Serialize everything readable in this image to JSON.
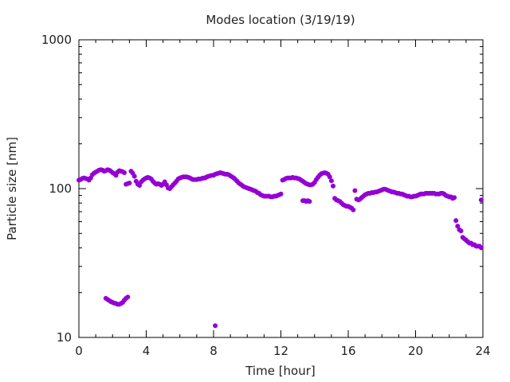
{
  "chart_data": {
    "type": "scatter",
    "title": "Modes location (3/19/19)",
    "xlabel": "Time [hour]",
    "ylabel": "Particle size [nm]",
    "xlim": [
      0,
      24
    ],
    "ylim": [
      10,
      1000
    ],
    "yscale": "log",
    "x_ticks": [
      0,
      4,
      8,
      12,
      16,
      20,
      24
    ],
    "y_ticks": [
      10,
      100,
      1000
    ],
    "grid": false,
    "legend": "none",
    "marker_color": "#9400d3",
    "series": [
      {
        "points": [
          [
            0.0,
            114
          ],
          [
            0.1,
            115
          ],
          [
            0.2,
            117
          ],
          [
            0.3,
            118
          ],
          [
            0.4,
            117
          ],
          [
            0.5,
            116
          ],
          [
            0.6,
            114
          ],
          [
            0.7,
            118
          ],
          [
            0.8,
            124
          ],
          [
            0.9,
            127
          ],
          [
            1.0,
            129
          ],
          [
            1.1,
            131
          ],
          [
            1.2,
            133
          ],
          [
            1.3,
            134
          ],
          [
            1.4,
            133
          ],
          [
            1.5,
            131
          ],
          [
            1.6,
            132
          ],
          [
            1.7,
            134
          ],
          [
            1.8,
            133
          ],
          [
            1.9,
            131
          ],
          [
            2.0,
            128
          ],
          [
            2.1,
            126
          ],
          [
            2.2,
            123
          ],
          [
            2.3,
            129
          ],
          [
            2.4,
            132
          ],
          [
            2.5,
            131
          ],
          [
            2.6,
            130
          ],
          [
            2.7,
            128
          ],
          [
            2.8,
            107
          ],
          [
            2.9,
            108
          ],
          [
            3.0,
            109
          ],
          [
            3.1,
            131
          ],
          [
            3.2,
            127
          ],
          [
            3.3,
            121
          ],
          [
            3.4,
            112
          ],
          [
            3.5,
            107
          ],
          [
            3.6,
            105
          ],
          [
            3.7,
            111
          ],
          [
            3.8,
            114
          ],
          [
            3.9,
            116
          ],
          [
            4.0,
            118
          ],
          [
            4.1,
            119
          ],
          [
            4.2,
            118
          ],
          [
            4.3,
            116
          ],
          [
            4.4,
            112
          ],
          [
            4.5,
            109
          ],
          [
            4.6,
            107
          ],
          [
            4.7,
            108
          ],
          [
            4.8,
            107
          ],
          [
            4.9,
            105
          ],
          [
            5.0,
            107
          ],
          [
            5.1,
            111
          ],
          [
            5.2,
            106
          ],
          [
            5.3,
            101
          ],
          [
            5.4,
            100
          ],
          [
            5.5,
            103
          ],
          [
            5.6,
            106
          ],
          [
            5.7,
            109
          ],
          [
            5.8,
            112
          ],
          [
            5.9,
            116
          ],
          [
            6.0,
            118
          ],
          [
            6.1,
            119
          ],
          [
            6.2,
            120
          ],
          [
            6.3,
            120
          ],
          [
            6.4,
            120
          ],
          [
            6.5,
            119
          ],
          [
            6.6,
            118
          ],
          [
            6.7,
            116
          ],
          [
            6.8,
            115
          ],
          [
            6.9,
            115
          ],
          [
            7.0,
            115
          ],
          [
            7.1,
            116
          ],
          [
            7.2,
            116
          ],
          [
            7.3,
            117
          ],
          [
            7.4,
            118
          ],
          [
            7.5,
            118
          ],
          [
            7.6,
            120
          ],
          [
            7.7,
            121
          ],
          [
            7.8,
            122
          ],
          [
            7.9,
            123
          ],
          [
            8.0,
            123
          ],
          [
            8.1,
            125
          ],
          [
            8.2,
            126
          ],
          [
            8.3,
            127
          ],
          [
            8.4,
            128
          ],
          [
            8.5,
            127
          ],
          [
            8.6,
            126
          ],
          [
            8.7,
            125
          ],
          [
            8.8,
            125
          ],
          [
            8.9,
            124
          ],
          [
            9.0,
            122
          ],
          [
            9.1,
            120
          ],
          [
            9.2,
            118
          ],
          [
            9.3,
            115
          ],
          [
            9.4,
            112
          ],
          [
            9.5,
            109
          ],
          [
            9.6,
            107
          ],
          [
            9.7,
            105
          ],
          [
            9.8,
            103
          ],
          [
            9.9,
            102
          ],
          [
            10.0,
            101
          ],
          [
            10.1,
            100
          ],
          [
            10.2,
            99
          ],
          [
            10.3,
            98
          ],
          [
            10.4,
            97
          ],
          [
            10.5,
            96
          ],
          [
            10.6,
            94
          ],
          [
            10.7,
            93
          ],
          [
            10.8,
            91
          ],
          [
            10.9,
            90
          ],
          [
            11.0,
            89
          ],
          [
            11.1,
            89
          ],
          [
            11.2,
            89
          ],
          [
            11.3,
            89
          ],
          [
            11.4,
            88
          ],
          [
            11.5,
            88
          ],
          [
            11.6,
            89
          ],
          [
            11.7,
            89
          ],
          [
            11.8,
            90
          ],
          [
            11.9,
            91
          ],
          [
            12.0,
            92
          ],
          [
            12.1,
            114
          ],
          [
            12.2,
            115
          ],
          [
            12.3,
            117
          ],
          [
            12.4,
            118
          ],
          [
            12.5,
            118
          ],
          [
            12.6,
            118
          ],
          [
            12.7,
            119
          ],
          [
            12.8,
            118
          ],
          [
            12.9,
            118
          ],
          [
            13.0,
            117
          ],
          [
            13.1,
            116
          ],
          [
            13.2,
            114
          ],
          [
            13.3,
            112
          ],
          [
            13.4,
            110
          ],
          [
            13.5,
            108
          ],
          [
            13.6,
            107
          ],
          [
            13.7,
            106
          ],
          [
            13.8,
            106
          ],
          [
            13.9,
            107
          ],
          [
            14.0,
            110
          ],
          [
            14.1,
            115
          ],
          [
            14.2,
            119
          ],
          [
            14.3,
            123
          ],
          [
            14.4,
            126
          ],
          [
            14.5,
            127
          ],
          [
            14.6,
            128
          ],
          [
            14.7,
            127
          ],
          [
            14.8,
            125
          ],
          [
            14.9,
            120
          ],
          [
            15.0,
            113
          ],
          [
            15.1,
            104
          ],
          [
            15.2,
            86
          ],
          [
            15.3,
            84
          ],
          [
            15.4,
            83
          ],
          [
            15.5,
            82
          ],
          [
            15.6,
            80
          ],
          [
            15.7,
            78
          ],
          [
            15.8,
            77
          ],
          [
            15.9,
            76
          ],
          [
            16.0,
            76
          ],
          [
            16.1,
            75
          ],
          [
            16.2,
            74
          ],
          [
            16.3,
            72
          ],
          [
            16.4,
            97
          ],
          [
            16.5,
            85
          ],
          [
            16.6,
            84
          ],
          [
            16.7,
            85
          ],
          [
            16.8,
            87
          ],
          [
            16.9,
            89
          ],
          [
            17.0,
            91
          ],
          [
            17.1,
            92
          ],
          [
            17.2,
            93
          ],
          [
            17.3,
            93
          ],
          [
            17.4,
            94
          ],
          [
            17.5,
            94
          ],
          [
            17.6,
            95
          ],
          [
            17.7,
            95
          ],
          [
            17.8,
            96
          ],
          [
            17.9,
            97
          ],
          [
            18.0,
            98
          ],
          [
            18.1,
            99
          ],
          [
            18.2,
            99
          ],
          [
            18.3,
            98
          ],
          [
            18.4,
            97
          ],
          [
            18.5,
            96
          ],
          [
            18.6,
            95
          ],
          [
            18.7,
            95
          ],
          [
            18.8,
            94
          ],
          [
            18.9,
            93
          ],
          [
            19.0,
            93
          ],
          [
            19.1,
            92
          ],
          [
            19.2,
            92
          ],
          [
            19.3,
            91
          ],
          [
            19.4,
            90
          ],
          [
            19.5,
            89
          ],
          [
            19.6,
            89
          ],
          [
            19.7,
            88
          ],
          [
            19.8,
            88
          ],
          [
            19.9,
            89
          ],
          [
            20.0,
            89
          ],
          [
            20.1,
            90
          ],
          [
            20.2,
            91
          ],
          [
            20.3,
            92
          ],
          [
            20.4,
            92
          ],
          [
            20.5,
            92
          ],
          [
            20.6,
            93
          ],
          [
            20.7,
            93
          ],
          [
            20.8,
            93
          ],
          [
            20.9,
            93
          ],
          [
            21.0,
            93
          ],
          [
            21.1,
            93
          ],
          [
            21.2,
            92
          ],
          [
            21.3,
            92
          ],
          [
            21.4,
            92
          ],
          [
            21.5,
            93
          ],
          [
            21.6,
            93
          ],
          [
            21.7,
            92
          ],
          [
            21.8,
            90
          ],
          [
            21.9,
            89
          ],
          [
            22.0,
            88
          ],
          [
            22.1,
            88
          ],
          [
            22.2,
            86
          ],
          [
            22.3,
            87
          ],
          [
            22.4,
            61
          ],
          [
            22.5,
            56
          ],
          [
            22.6,
            53
          ],
          [
            22.7,
            52
          ],
          [
            22.8,
            47
          ],
          [
            22.9,
            46
          ],
          [
            23.0,
            45
          ],
          [
            23.1,
            44
          ],
          [
            23.2,
            43
          ],
          [
            23.3,
            43
          ],
          [
            23.4,
            42
          ],
          [
            23.5,
            42
          ],
          [
            23.6,
            41
          ],
          [
            23.7,
            41
          ],
          [
            23.8,
            41
          ],
          [
            23.9,
            40
          ],
          [
            23.9,
            84
          ],
          [
            13.3,
            83
          ],
          [
            13.4,
            83
          ],
          [
            13.5,
            82
          ],
          [
            13.6,
            83
          ],
          [
            13.7,
            82
          ],
          [
            1.6,
            18.3
          ],
          [
            1.7,
            18
          ],
          [
            1.8,
            17.7
          ],
          [
            1.9,
            17.4
          ],
          [
            2.0,
            17.2
          ],
          [
            2.1,
            17
          ],
          [
            2.2,
            16.9
          ],
          [
            2.3,
            16.7
          ],
          [
            2.4,
            16.7
          ],
          [
            2.5,
            16.9
          ],
          [
            2.6,
            17.2
          ],
          [
            2.7,
            17.8
          ],
          [
            2.8,
            18.3
          ],
          [
            2.9,
            18.7
          ],
          [
            8.1,
            12
          ]
        ]
      }
    ]
  }
}
